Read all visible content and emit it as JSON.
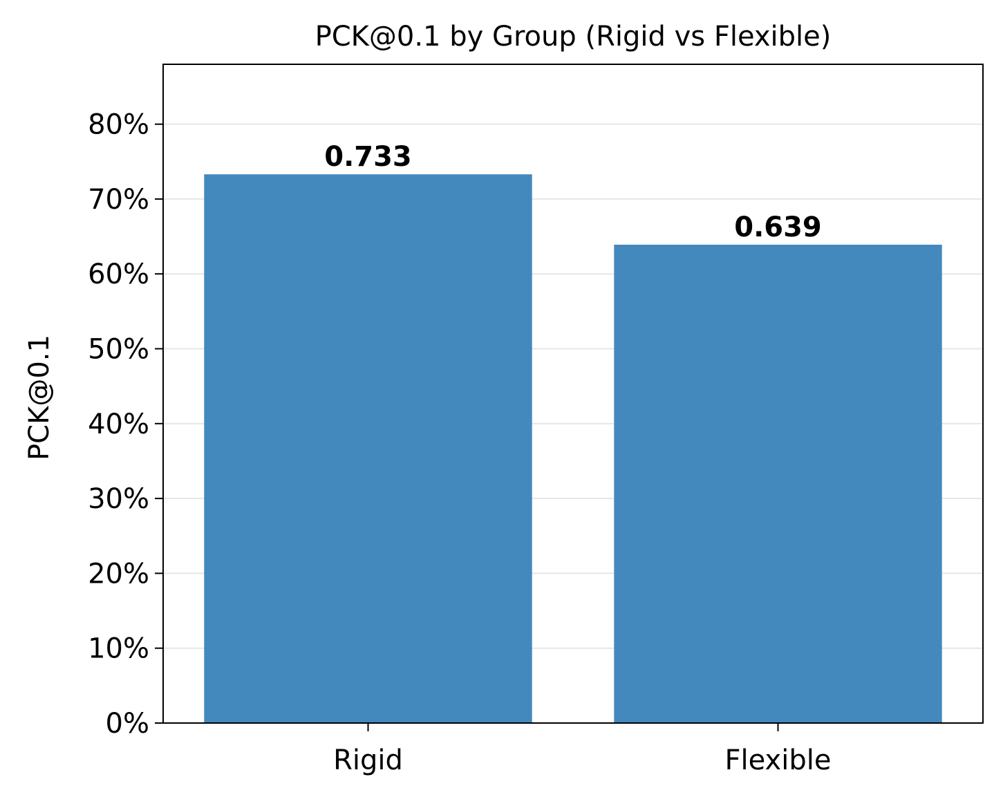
{
  "chart_data": {
    "type": "bar",
    "title": "PCK@0.1 by Group (Rigid vs Flexible)",
    "xlabel": "",
    "ylabel": "PCK@0.1",
    "categories": [
      "Rigid",
      "Flexible"
    ],
    "values": [
      0.733,
      0.639
    ],
    "data_labels": [
      "0.733",
      "0.639"
    ],
    "ylim": [
      0,
      0.88
    ],
    "yticks": [
      0,
      0.1,
      0.2,
      0.3,
      0.4,
      0.5,
      0.6,
      0.7,
      0.8
    ],
    "ytick_labels": [
      "0%",
      "10%",
      "20%",
      "30%",
      "40%",
      "50%",
      "60%",
      "70%",
      "80%"
    ],
    "grid": "horizontal",
    "legend": "none",
    "bar_color": "#4389be",
    "grid_color": "#e6e6e6"
  }
}
